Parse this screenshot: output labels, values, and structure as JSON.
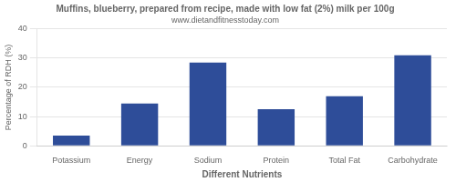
{
  "chart_data": {
    "type": "bar",
    "title": "Muffins, blueberry, prepared from recipe, made with low fat (2%) milk per 100g",
    "subtitle": "www.dietandfitnesstoday.com",
    "xlabel": "Different Nutrients",
    "ylabel": "Percentage of RDH (%)",
    "categories": [
      "Potassium",
      "Energy",
      "Sodium",
      "Protein",
      "Total Fat",
      "Carbohydrate"
    ],
    "values": [
      3.5,
      14.5,
      28.5,
      12.5,
      17.0,
      31.0
    ],
    "color": "#2e4d99",
    "ylim": [
      0,
      40
    ],
    "yticks": [
      0,
      10,
      20,
      30,
      40
    ],
    "grid": true
  }
}
